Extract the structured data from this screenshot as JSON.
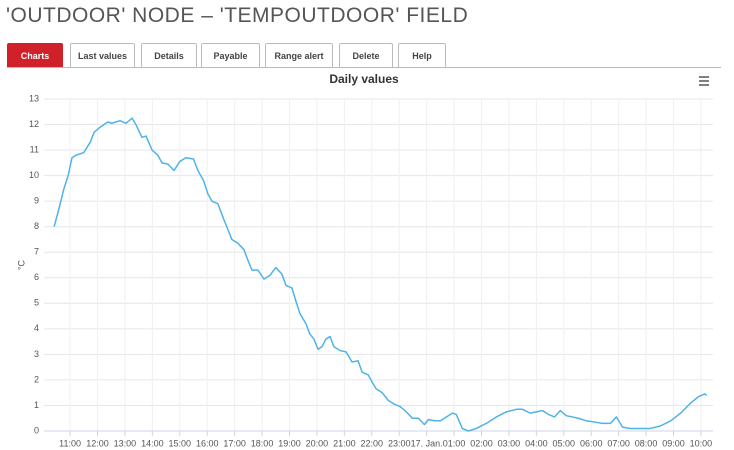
{
  "header": {
    "title": "'OUTDOOR' NODE – 'TEMPOUTDOOR' FIELD"
  },
  "tabs": [
    "Charts",
    "Last values",
    "Details",
    "Payable",
    "Range alert",
    "Delete",
    "Help"
  ],
  "chart_data": {
    "type": "line",
    "title": "Daily values",
    "y_label": "°C",
    "color": "#4fb3e8",
    "grid": true,
    "xlim": [
      10.05,
      34.44
    ],
    "ylim": [
      0,
      13
    ],
    "yticks": [
      0,
      1,
      2,
      3,
      4,
      5,
      6,
      7,
      8,
      9,
      10,
      11,
      12,
      13
    ],
    "xticks": [
      {
        "value": 11,
        "label": "11:00"
      },
      {
        "value": 12,
        "label": "12:00"
      },
      {
        "value": 13,
        "label": "13:00"
      },
      {
        "value": 14,
        "label": "14:00"
      },
      {
        "value": 15,
        "label": "15:00"
      },
      {
        "value": 16,
        "label": "16:00"
      },
      {
        "value": 17,
        "label": "17:00"
      },
      {
        "value": 18,
        "label": "18:00"
      },
      {
        "value": 19,
        "label": "19:00"
      },
      {
        "value": 20,
        "label": "20:00"
      },
      {
        "value": 21,
        "label": "21:00"
      },
      {
        "value": 22,
        "label": "22:00"
      },
      {
        "value": 23,
        "label": "23:00"
      },
      {
        "value": 24,
        "label": "17. Jan."
      },
      {
        "value": 25,
        "label": "01:00"
      },
      {
        "value": 26,
        "label": "02:00"
      },
      {
        "value": 27,
        "label": "03:00"
      },
      {
        "value": 28,
        "label": "04:00"
      },
      {
        "value": 29,
        "label": "05:00"
      },
      {
        "value": 30,
        "label": "06:00"
      },
      {
        "value": 31,
        "label": "07:00"
      },
      {
        "value": 32,
        "label": "08:00"
      },
      {
        "value": 33,
        "label": "09:00"
      },
      {
        "value": 34,
        "label": "10:00"
      }
    ],
    "x": [
      10.42,
      10.57,
      10.78,
      10.93,
      11.07,
      11.22,
      11.5,
      11.73,
      11.88,
      12.1,
      12.38,
      12.52,
      12.82,
      13.04,
      13.26,
      13.4,
      13.62,
      13.77,
      13.99,
      14.2,
      14.35,
      14.57,
      14.79,
      15.0,
      15.22,
      15.5,
      15.66,
      15.87,
      16.02,
      16.17,
      16.39,
      16.6,
      16.75,
      16.9,
      17.12,
      17.34,
      17.48,
      17.63,
      17.85,
      18.07,
      18.29,
      18.5,
      18.72,
      18.87,
      19.09,
      19.23,
      19.38,
      19.6,
      19.74,
      19.89,
      20.04,
      20.18,
      20.33,
      20.48,
      20.62,
      20.84,
      21.06,
      21.28,
      21.5,
      21.65,
      21.87,
      22.02,
      22.16,
      22.38,
      22.6,
      22.82,
      23.04,
      23.26,
      23.48,
      23.7,
      23.92,
      24.06,
      24.28,
      24.5,
      24.72,
      24.94,
      25.08,
      25.3,
      25.52,
      25.81,
      26.18,
      26.54,
      26.91,
      27.27,
      27.49,
      27.78,
      28.0,
      28.22,
      28.44,
      28.66,
      28.87,
      29.09,
      29.31,
      29.53,
      29.82,
      30.12,
      30.41,
      30.7,
      30.92,
      31.14,
      31.43,
      31.8,
      32.16,
      32.53,
      32.9,
      33.26,
      33.63,
      33.92,
      34.14,
      34.21
    ],
    "values": [
      8.0,
      8.6,
      9.5,
      10.0,
      10.7,
      10.8,
      10.9,
      11.3,
      11.7,
      11.9,
      12.1,
      12.05,
      12.15,
      12.05,
      12.25,
      12.0,
      11.5,
      11.55,
      11.0,
      10.8,
      10.5,
      10.45,
      10.2,
      10.55,
      10.7,
      10.65,
      10.2,
      9.8,
      9.3,
      9.0,
      8.9,
      8.3,
      7.9,
      7.5,
      7.35,
      7.1,
      6.7,
      6.3,
      6.3,
      5.95,
      6.1,
      6.4,
      6.15,
      5.7,
      5.6,
      5.1,
      4.6,
      4.2,
      3.8,
      3.6,
      3.2,
      3.3,
      3.6,
      3.7,
      3.3,
      3.15,
      3.1,
      2.7,
      2.75,
      2.3,
      2.2,
      1.9,
      1.65,
      1.5,
      1.2,
      1.05,
      0.95,
      0.75,
      0.5,
      0.5,
      0.25,
      0.45,
      0.4,
      0.4,
      0.55,
      0.7,
      0.65,
      0.1,
      0.0,
      0.1,
      0.3,
      0.55,
      0.75,
      0.85,
      0.85,
      0.7,
      0.75,
      0.8,
      0.65,
      0.55,
      0.8,
      0.6,
      0.55,
      0.5,
      0.4,
      0.35,
      0.3,
      0.3,
      0.55,
      0.15,
      0.1,
      0.1,
      0.1,
      0.2,
      0.4,
      0.7,
      1.1,
      1.35,
      1.45,
      1.4
    ]
  }
}
